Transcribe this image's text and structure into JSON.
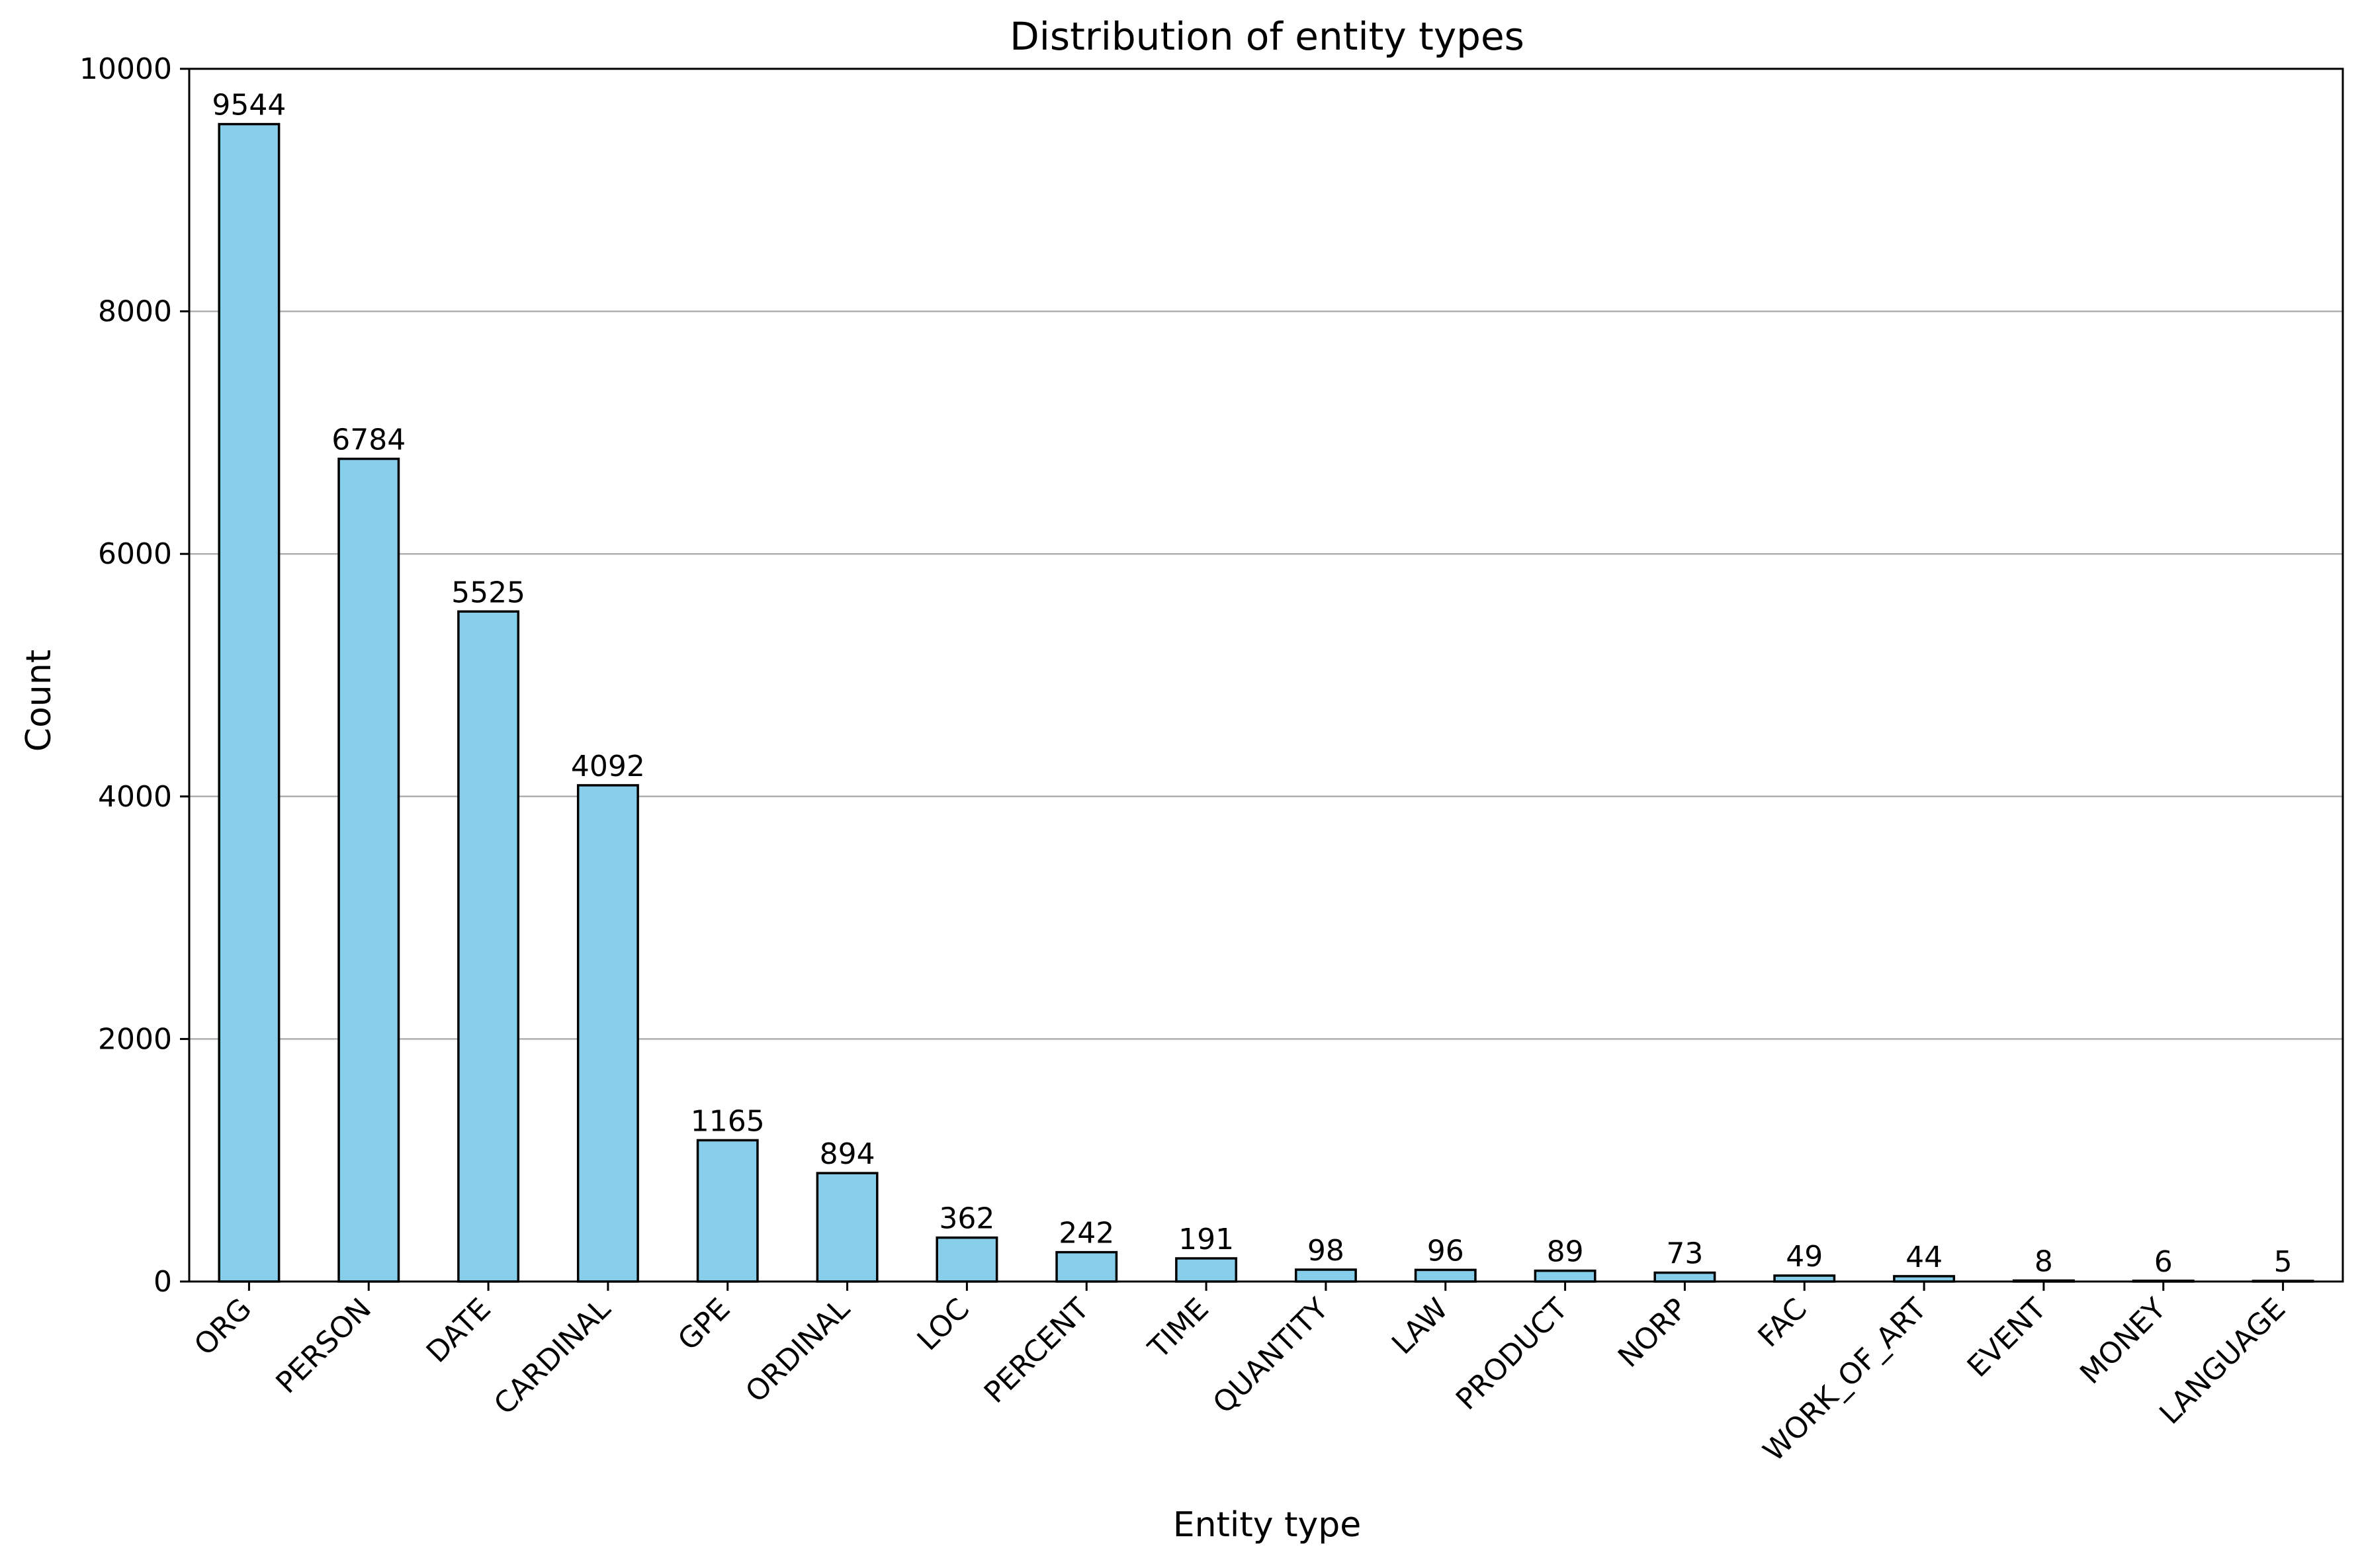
{
  "chart_data": {
    "type": "bar",
    "title": "Distribution of entity types",
    "xlabel": "Entity type",
    "ylabel": "Count",
    "categories": [
      "ORG",
      "PERSON",
      "DATE",
      "CARDINAL",
      "GPE",
      "ORDINAL",
      "LOC",
      "PERCENT",
      "TIME",
      "QUANTITY",
      "LAW",
      "PRODUCT",
      "NORP",
      "FAC",
      "WORK_OF_ART",
      "EVENT",
      "MONEY",
      "LANGUAGE"
    ],
    "values": [
      9544,
      6784,
      5525,
      4092,
      1165,
      894,
      362,
      242,
      191,
      98,
      96,
      89,
      73,
      49,
      44,
      8,
      6,
      5
    ],
    "ylim": [
      0,
      10000
    ],
    "yticks": [
      0,
      2000,
      4000,
      6000,
      8000,
      10000
    ],
    "grid": "y-axis",
    "data_labels": true,
    "legend": "none",
    "colors": {
      "bar_fill": "#87CEEB",
      "bar_edge": "#000000",
      "grid": "#b0b0b0",
      "axis": "#000000"
    }
  }
}
